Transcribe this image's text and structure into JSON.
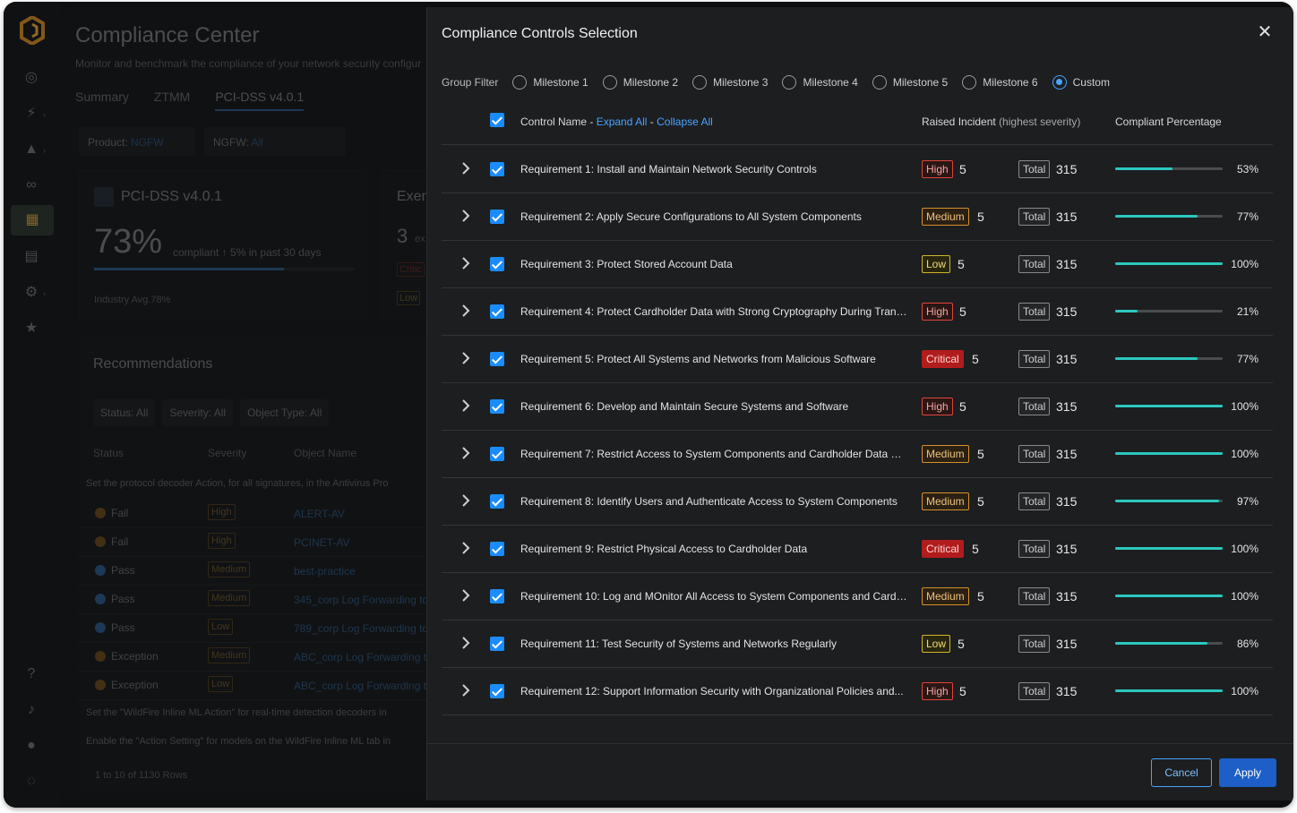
{
  "background": {
    "title": "Compliance Center",
    "subtitle": "Monitor and benchmark the compliance of your network security configur",
    "tabs": [
      "Summary",
      "ZTMM",
      "PCI-DSS v4.0.1"
    ],
    "product_filter": {
      "label": "Product:",
      "value": "NGFW"
    },
    "ngfw_filter": {
      "label": "NGFW:",
      "value": "All"
    },
    "score_card": {
      "title": "PCI-DSS v4.0.1",
      "score": "73%",
      "compliant": "compliant",
      "trend": "5% in past 30 days",
      "industry_avg": "Industry Avg.78%"
    },
    "exempt_card": {
      "title": "Exem",
      "count": "3",
      "count_suffix": "ex",
      "badges": [
        "Critic",
        "Low"
      ]
    },
    "recommendations": {
      "title": "Recommendations",
      "filters": [
        "Status: All",
        "Severity: All",
        "Object Type: All"
      ],
      "columns": [
        "Status",
        "Severity",
        "Object Name"
      ],
      "group_1": "Set the protocol decoder Action, for all signatures, in the Antivirus Pro",
      "rows": [
        {
          "status": "Fail",
          "severity": "High",
          "object": "ALERT-AV"
        },
        {
          "status": "Fail",
          "severity": "High",
          "object": "PCINET-AV"
        },
        {
          "status": "Pass",
          "severity": "Medium",
          "object": "best-practice"
        },
        {
          "status": "Pass",
          "severity": "Medium",
          "object": "345_corp Log Forwarding to"
        },
        {
          "status": "Pass",
          "severity": "Low",
          "object": "789_corp Log Forwarding to"
        },
        {
          "status": "Exception",
          "severity": "Medium",
          "object": "ABC_corp Log Forwarding to"
        },
        {
          "status": "Exception",
          "severity": "Low",
          "object": "ABC_corp Log Forwarding to"
        }
      ],
      "group_2": "Set the \"WildFire Inline ML Action\" for real-time detection decoders in",
      "group_3": "Enable the \"Action Setting\" for models on the WildFire Inline ML tab in",
      "footer": "1 to 10 of 1130 Rows"
    }
  },
  "modal": {
    "title": "Compliance Controls Selection",
    "group_filter": {
      "label": "Group Filter",
      "options": [
        "Milestone 1",
        "Milestone 2",
        "Milestone 3",
        "Milestone 4",
        "Milestone 5",
        "Milestone 6",
        "Custom"
      ],
      "selected": "Custom"
    },
    "header": {
      "control_name": "Control Name -",
      "expand_all": "Expand All",
      "sep": "-",
      "collapse_all": "Collapse All",
      "raised_incident": "Raised Incident",
      "raised_incident_note": "(highest severity)",
      "compliant_percentage": "Compliant Percentage"
    },
    "total_label": "Total",
    "rows": [
      {
        "name": "Requirement 1: Install and Maintain Network Security Controls",
        "severity": "High",
        "count": "5",
        "total": "315",
        "percent": 53,
        "percent_label": "53%"
      },
      {
        "name": "Requirement 2: Apply Secure Configurations to All System Components",
        "severity": "Medium",
        "count": "5",
        "total": "315",
        "percent": 77,
        "percent_label": "77%"
      },
      {
        "name": "Requirement 3: Protect Stored Account Data",
        "severity": "Low",
        "count": "5",
        "total": "315",
        "percent": 100,
        "percent_label": "100%"
      },
      {
        "name": "Requirement 4: Protect Cardholder Data with Strong Cryptography During Trans...",
        "severity": "High",
        "count": "5",
        "total": "315",
        "percent": 21,
        "percent_label": "21%"
      },
      {
        "name": "Requirement 5: Protect All Systems and Networks from Malicious Software",
        "severity": "Critical",
        "count": "5",
        "total": "315",
        "percent": 77,
        "percent_label": "77%"
      },
      {
        "name": "Requirement 6: Develop and Maintain Secure Systems and Software",
        "severity": "High",
        "count": "5",
        "total": "315",
        "percent": 100,
        "percent_label": "100%"
      },
      {
        "name": "Requirement 7: Restrict Access to System Components and Cardholder Data by...",
        "severity": "Medium",
        "count": "5",
        "total": "315",
        "percent": 100,
        "percent_label": "100%"
      },
      {
        "name": "Requirement 8: Identify Users and Authenticate Access to System Components",
        "severity": "Medium",
        "count": "5",
        "total": "315",
        "percent": 97,
        "percent_label": "97%"
      },
      {
        "name": "Requirement 9: Restrict Physical Access to Cardholder Data",
        "severity": "Critical",
        "count": "5",
        "total": "315",
        "percent": 100,
        "percent_label": "100%"
      },
      {
        "name": "Requirement 10: Log and MOnitor All Access to System Components and Cardh...",
        "severity": "Medium",
        "count": "5",
        "total": "315",
        "percent": 100,
        "percent_label": "100%"
      },
      {
        "name": "Requirement 11: Test Security of Systems and Networks Regularly",
        "severity": "Low",
        "count": "5",
        "total": "315",
        "percent": 86,
        "percent_label": "86%"
      },
      {
        "name": "Requirement 12: Support Information Security with Organizational Policies and...",
        "severity": "High",
        "count": "5",
        "total": "315",
        "percent": 100,
        "percent_label": "100%"
      }
    ],
    "buttons": {
      "cancel": "Cancel",
      "apply": "Apply"
    }
  }
}
